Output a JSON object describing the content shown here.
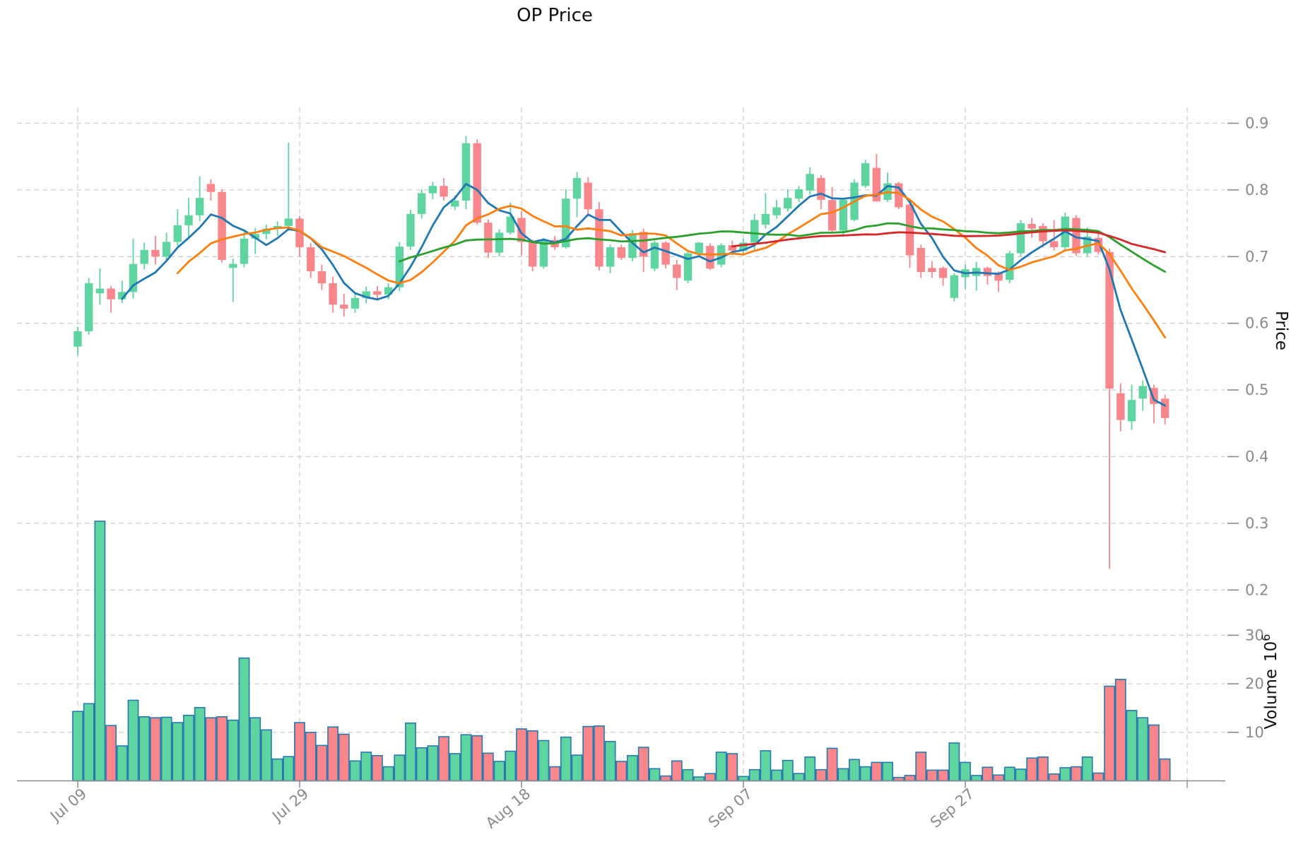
{
  "title": "OP Price",
  "axes": {
    "price_label": "Price",
    "volume_label": "Volume",
    "volume_unit_base": "10",
    "volume_unit_exp": "6",
    "price_ticks": [
      0.9,
      0.8,
      0.7,
      0.6,
      0.5,
      0.4,
      0.3,
      0.2
    ],
    "volume_ticks": [
      30,
      20,
      10
    ],
    "x_ticks": [
      {
        "label": "Jul 09",
        "day": 0
      },
      {
        "label": "Jul 29",
        "day": 20
      },
      {
        "label": "Aug 18",
        "day": 40
      },
      {
        "label": "Sep 07",
        "day": 60
      },
      {
        "label": "Sep 27",
        "day": 80
      },
      {
        "label": "",
        "day": 100
      }
    ]
  },
  "style": {
    "up_color": "#5ED5A0",
    "down_color": "#F8868B",
    "volume_edge_color": "#2878B0",
    "grid_color": "#d0d0d0",
    "spine_color": "#8c8c8c",
    "tick_label_color": "#8a8a8a",
    "ma_colors": {
      "sma5": "#1F77B4",
      "sma10": "#FF7F0E",
      "sma30": "#2CA02C",
      "sma60": "#D62728"
    }
  },
  "chart_data": {
    "type": "candlestick+volume",
    "title": "OP Price",
    "ylabel": "Price",
    "ylabel2": "Volume 10^6",
    "price_axis_range": [
      0.2,
      0.9
    ],
    "volume_axis_ticks": [
      10,
      20,
      30
    ],
    "grid": true,
    "legend_position": "none",
    "moving_averages": [
      {
        "name": "sma5",
        "period": 5,
        "color": "#1F77B4"
      },
      {
        "name": "sma10",
        "period": 10,
        "color": "#FF7F0E"
      },
      {
        "name": "sma30",
        "period": 30,
        "color": "#2CA02C"
      },
      {
        "name": "sma60",
        "period": 60,
        "color": "#D62728"
      }
    ],
    "columns": [
      "date",
      "open",
      "high",
      "low",
      "close",
      "volume_millions"
    ],
    "candles": [
      [
        "Jul 09",
        0.565,
        0.595,
        0.552,
        0.588,
        14.3
      ],
      [
        "Jul 10",
        0.588,
        0.668,
        0.583,
        0.66,
        15.9
      ],
      [
        "Jul 11",
        0.645,
        0.682,
        0.628,
        0.652,
        53.5
      ],
      [
        "Jul 12",
        0.652,
        0.656,
        0.616,
        0.636,
        11.4
      ],
      [
        "Jul 13",
        0.636,
        0.664,
        0.63,
        0.647,
        7.2
      ],
      [
        "Jul 14",
        0.647,
        0.727,
        0.637,
        0.689,
        16.6
      ],
      [
        "Jul 15",
        0.689,
        0.721,
        0.681,
        0.71,
        13.2
      ],
      [
        "Jul 16",
        0.71,
        0.731,
        0.688,
        0.7,
        13.0
      ],
      [
        "Jul 17",
        0.7,
        0.736,
        0.692,
        0.722,
        13.1
      ],
      [
        "Jul 18",
        0.722,
        0.771,
        0.716,
        0.747,
        12.0
      ],
      [
        "Jul 19",
        0.747,
        0.788,
        0.727,
        0.762,
        13.5
      ],
      [
        "Jul 20",
        0.762,
        0.82,
        0.753,
        0.788,
        15.1
      ],
      [
        "Jul 21",
        0.809,
        0.816,
        0.784,
        0.797,
        13.0
      ],
      [
        "Jul 22",
        0.797,
        0.801,
        0.691,
        0.695,
        13.2
      ],
      [
        "Jul 23",
        0.683,
        0.697,
        0.632,
        0.689,
        12.5
      ],
      [
        "Jul 24",
        0.689,
        0.737,
        0.684,
        0.727,
        25.3
      ],
      [
        "Jul 25",
        0.727,
        0.743,
        0.704,
        0.734,
        13.0
      ],
      [
        "Jul 26",
        0.734,
        0.748,
        0.726,
        0.742,
        10.5
      ],
      [
        "Jul 27",
        0.742,
        0.753,
        0.731,
        0.746,
        4.5
      ],
      [
        "Jul 28",
        0.746,
        0.871,
        0.739,
        0.757,
        5.0
      ],
      [
        "Jul 29",
        0.757,
        0.761,
        0.7,
        0.714,
        12.0
      ],
      [
        "Jul 30",
        0.714,
        0.72,
        0.668,
        0.678,
        10.0
      ],
      [
        "Jul 31",
        0.678,
        0.688,
        0.65,
        0.66,
        7.3
      ],
      [
        "Aug 01",
        0.66,
        0.67,
        0.616,
        0.628,
        11.1
      ],
      [
        "Aug 02",
        0.628,
        0.644,
        0.61,
        0.622,
        9.6
      ],
      [
        "Aug 03",
        0.622,
        0.646,
        0.616,
        0.638,
        4.1
      ],
      [
        "Aug 04",
        0.638,
        0.655,
        0.63,
        0.648,
        5.9
      ],
      [
        "Aug 05",
        0.648,
        0.656,
        0.634,
        0.643,
        5.2
      ],
      [
        "Aug 06",
        0.643,
        0.66,
        0.636,
        0.654,
        2.9
      ],
      [
        "Aug 07",
        0.654,
        0.722,
        0.648,
        0.715,
        5.3
      ],
      [
        "Aug 08",
        0.715,
        0.77,
        0.71,
        0.764,
        11.9
      ],
      [
        "Aug 09",
        0.764,
        0.801,
        0.757,
        0.795,
        6.8
      ],
      [
        "Aug 10",
        0.795,
        0.812,
        0.786,
        0.806,
        7.2
      ],
      [
        "Aug 11",
        0.806,
        0.818,
        0.784,
        0.79,
        9.1
      ],
      [
        "Aug 12",
        0.775,
        0.792,
        0.77,
        0.784,
        5.6
      ],
      [
        "Aug 13",
        0.784,
        0.881,
        0.771,
        0.87,
        9.5
      ],
      [
        "Aug 14",
        0.87,
        0.876,
        0.748,
        0.751,
        9.3
      ],
      [
        "Aug 15",
        0.751,
        0.756,
        0.698,
        0.706,
        5.7
      ],
      [
        "Aug 16",
        0.706,
        0.741,
        0.7,
        0.736,
        4.0
      ],
      [
        "Aug 17",
        0.736,
        0.781,
        0.733,
        0.76,
        6.1
      ],
      [
        "Aug 18",
        0.758,
        0.768,
        0.702,
        0.722,
        10.7
      ],
      [
        "Aug 19",
        0.722,
        0.726,
        0.678,
        0.685,
        10.3
      ],
      [
        "Aug 20",
        0.685,
        0.728,
        0.682,
        0.725,
        8.3
      ],
      [
        "Aug 21",
        0.725,
        0.731,
        0.71,
        0.714,
        2.9
      ],
      [
        "Aug 22",
        0.714,
        0.801,
        0.712,
        0.787,
        9.0
      ],
      [
        "Aug 23",
        0.787,
        0.827,
        0.759,
        0.818,
        5.3
      ],
      [
        "Aug 24",
        0.811,
        0.819,
        0.76,
        0.771,
        11.2
      ],
      [
        "Aug 25",
        0.771,
        0.782,
        0.679,
        0.685,
        11.3
      ],
      [
        "Aug 26",
        0.685,
        0.718,
        0.675,
        0.714,
        8.1
      ],
      [
        "Aug 27",
        0.714,
        0.718,
        0.695,
        0.698,
        4.0
      ],
      [
        "Aug 28",
        0.698,
        0.74,
        0.693,
        0.735,
        5.2
      ],
      [
        "Aug 29",
        0.737,
        0.742,
        0.677,
        0.7,
        6.9
      ],
      [
        "Aug 30",
        0.682,
        0.724,
        0.678,
        0.721,
        2.5
      ],
      [
        "Aug 31",
        0.721,
        0.723,
        0.682,
        0.688,
        1.0
      ],
      [
        "Sep 01",
        0.688,
        0.695,
        0.65,
        0.668,
        4.1
      ],
      [
        "Sep 02",
        0.664,
        0.708,
        0.66,
        0.705,
        2.3
      ],
      [
        "Sep 03",
        0.705,
        0.722,
        0.7,
        0.721,
        0.8
      ],
      [
        "Sep 04",
        0.716,
        0.72,
        0.68,
        0.682,
        1.5
      ],
      [
        "Sep 05",
        0.688,
        0.72,
        0.684,
        0.717,
        5.9
      ],
      [
        "Sep 06",
        0.717,
        0.724,
        0.702,
        0.709,
        5.6
      ],
      [
        "Sep 07",
        0.709,
        0.727,
        0.702,
        0.721,
        0.9
      ],
      [
        "Sep 08",
        0.721,
        0.764,
        0.709,
        0.755,
        2.3
      ],
      [
        "Sep 09",
        0.748,
        0.795,
        0.742,
        0.764,
        6.2
      ],
      [
        "Sep 10",
        0.762,
        0.785,
        0.757,
        0.774,
        2.2
      ],
      [
        "Sep 11",
        0.772,
        0.801,
        0.768,
        0.788,
        4.2
      ],
      [
        "Sep 12",
        0.787,
        0.806,
        0.782,
        0.801,
        1.5
      ],
      [
        "Sep 13",
        0.799,
        0.834,
        0.793,
        0.824,
        4.9
      ],
      [
        "Sep 14",
        0.818,
        0.822,
        0.771,
        0.785,
        2.3
      ],
      [
        "Sep 15",
        0.785,
        0.804,
        0.737,
        0.739,
        6.7
      ],
      [
        "Sep 16",
        0.739,
        0.788,
        0.73,
        0.785,
        2.5
      ],
      [
        "Sep 17",
        0.755,
        0.816,
        0.753,
        0.811,
        4.4
      ],
      [
        "Sep 18",
        0.806,
        0.845,
        0.803,
        0.84,
        2.9
      ],
      [
        "Sep 19",
        0.833,
        0.854,
        0.782,
        0.783,
        3.8
      ],
      [
        "Sep 20",
        0.785,
        0.826,
        0.782,
        0.81,
        3.8
      ],
      [
        "Sep 21",
        0.81,
        0.812,
        0.771,
        0.774,
        0.7
      ],
      [
        "Sep 22",
        0.778,
        0.78,
        0.683,
        0.702,
        1.1
      ],
      [
        "Sep 23",
        0.713,
        0.718,
        0.668,
        0.677,
        5.9
      ],
      [
        "Sep 24",
        0.683,
        0.693,
        0.668,
        0.677,
        2.2
      ],
      [
        "Sep 25",
        0.683,
        0.685,
        0.656,
        0.668,
        2.2
      ],
      [
        "Sep 26",
        0.638,
        0.675,
        0.633,
        0.672,
        7.8
      ],
      [
        "Sep 27",
        0.669,
        0.688,
        0.651,
        0.681,
        3.8
      ],
      [
        "Sep 28",
        0.671,
        0.692,
        0.649,
        0.683,
        1.1
      ],
      [
        "Sep 29",
        0.683,
        0.685,
        0.658,
        0.671,
        2.8
      ],
      [
        "Sep 30",
        0.676,
        0.678,
        0.647,
        0.664,
        1.2
      ],
      [
        "Oct 01",
        0.665,
        0.709,
        0.66,
        0.705,
        2.8
      ],
      [
        "Oct 02",
        0.705,
        0.755,
        0.701,
        0.75,
        2.4
      ],
      [
        "Oct 03",
        0.749,
        0.758,
        0.728,
        0.742,
        4.7
      ],
      [
        "Oct 04",
        0.746,
        0.75,
        0.714,
        0.723,
        4.9
      ],
      [
        "Oct 05",
        0.723,
        0.755,
        0.709,
        0.714,
        1.4
      ],
      [
        "Oct 06",
        0.714,
        0.766,
        0.71,
        0.76,
        2.7
      ],
      [
        "Oct 07",
        0.758,
        0.762,
        0.701,
        0.705,
        2.9
      ],
      [
        "Oct 08",
        0.705,
        0.744,
        0.7,
        0.73,
        4.9
      ],
      [
        "Oct 09",
        0.728,
        0.738,
        0.703,
        0.707,
        1.6
      ],
      [
        "Oct 10",
        0.707,
        0.712,
        0.232,
        0.502,
        19.5
      ],
      [
        "Oct 11",
        0.495,
        0.51,
        0.438,
        0.455,
        20.9
      ],
      [
        "Oct 12",
        0.453,
        0.508,
        0.44,
        0.485,
        14.5
      ],
      [
        "Oct 13",
        0.487,
        0.514,
        0.469,
        0.506,
        13.0
      ],
      [
        "Oct 14",
        0.503,
        0.508,
        0.45,
        0.479,
        11.5
      ],
      [
        "Oct 15",
        0.487,
        0.493,
        0.448,
        0.458,
        4.5
      ]
    ]
  }
}
